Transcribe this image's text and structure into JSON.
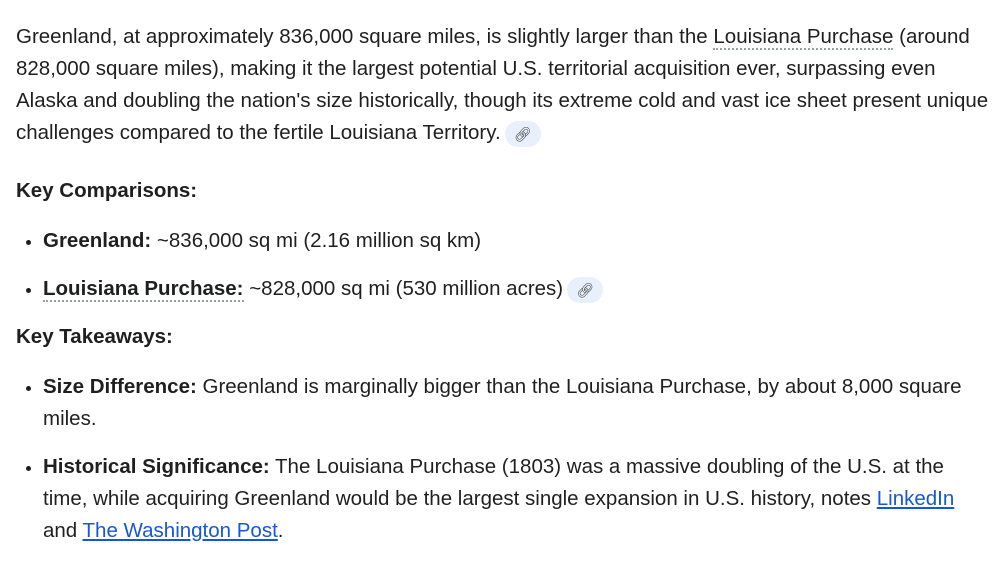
{
  "intro": {
    "before": "Greenland, at approximately 836,000 square miles, is slightly larger than the ",
    "term": "Louisiana Purchase",
    "after": " (around 828,000 square miles), making it the largest potential U.S. territorial acquisition ever, surpassing even Alaska and doubling the nation's size historically, though its extreme cold and vast ice sheet present unique challenges compared to the fertile Louisiana Territory.",
    "chip_icon": "link-icon"
  },
  "comparisons": {
    "heading": "Key Comparisons:",
    "items": [
      {
        "label": "Greenland:",
        "text": " ~836,000 sq mi (2.16 million sq km)"
      },
      {
        "label": "Louisiana Purchase:",
        "text": " ~828,000 sq mi (530 million acres)"
      }
    ]
  },
  "takeaways": {
    "heading": "Key Takeaways:",
    "items": [
      {
        "label": "Size Difference:",
        "text": " Greenland is marginally bigger than the Louisiana Purchase, by about 8,000 square miles."
      },
      {
        "label": "Historical Significance:",
        "text": " The Louisiana Purchase (1803) was a massive doubling of the U.S. at the time, while acquiring Greenland would be the largest single expansion in U.S. history, notes ",
        "link1": "LinkedIn",
        "and": " and ",
        "link2": "The Washington Post",
        "end": "."
      }
    ]
  }
}
